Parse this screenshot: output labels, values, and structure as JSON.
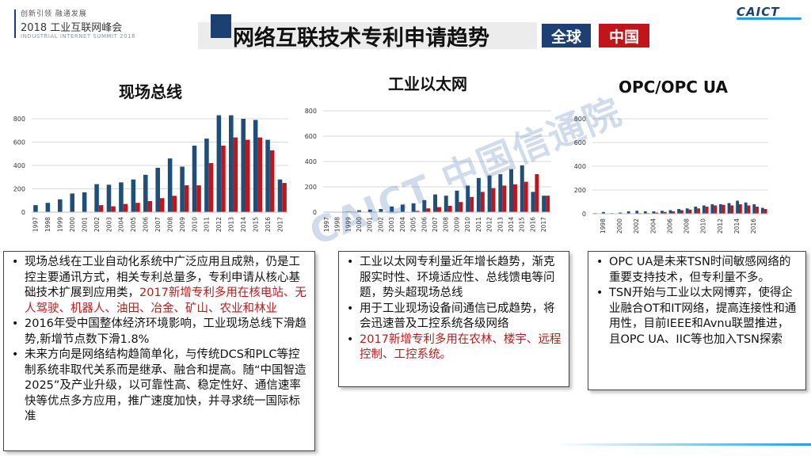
{
  "header": {
    "line1": "创新引领  融通发展",
    "line2": "2018 工业互联网峰会",
    "line3": "INDUSTRIAL INTERNET SUMMIT 2018",
    "title": "网络互联技术专利申请趋势",
    "tag_global": "全球",
    "tag_china": "中国",
    "logo": "CAICT",
    "colors": {
      "navy": "#1c3f74",
      "red": "#c0151b"
    }
  },
  "watermark": "CAICT 中国信通院",
  "chart_data": [
    {
      "type": "bar",
      "title": "现场总线",
      "categories": [
        "1997",
        "1998",
        "1999",
        "2000",
        "2001",
        "2002",
        "2003",
        "2004",
        "2005",
        "2006",
        "2007",
        "2008",
        "2009",
        "2010",
        "2011",
        "2012",
        "2013",
        "2014",
        "2015",
        "2016",
        "2017"
      ],
      "series": [
        {
          "color": "#1f4e79",
          "values": [
            60,
            80,
            110,
            160,
            170,
            240,
            235,
            255,
            280,
            320,
            380,
            460,
            390,
            570,
            630,
            830,
            830,
            800,
            790,
            620,
            280
          ]
        },
        {
          "color": "#c0151b",
          "values": [
            0,
            0,
            0,
            0,
            0,
            60,
            50,
            70,
            80,
            95,
            120,
            140,
            230,
            230,
            420,
            570,
            640,
            620,
            640,
            530,
            250
          ]
        }
      ],
      "y_ticks": [
        "0",
        "200",
        "400",
        "600",
        "800"
      ],
      "ylim": [
        0,
        800
      ]
    },
    {
      "type": "bar",
      "title": "工业以太网",
      "categories": [
        "1997",
        "1998",
        "1999",
        "2000",
        "2001",
        "2002",
        "2003",
        "2004",
        "2005",
        "2006",
        "2007",
        "2008",
        "2009",
        "2010",
        "2011",
        "2012",
        "2013",
        "2014",
        "2015",
        "2016",
        "2017"
      ],
      "series": [
        {
          "color": "#1f4e79",
          "values": [
            0,
            0,
            5,
            15,
            20,
            25,
            45,
            60,
            70,
            95,
            140,
            130,
            170,
            210,
            270,
            290,
            300,
            340,
            370,
            160,
            130
          ]
        },
        {
          "color": "#c0151b",
          "values": [
            0,
            0,
            0,
            0,
            0,
            0,
            0,
            0,
            10,
            30,
            40,
            50,
            80,
            120,
            160,
            190,
            210,
            220,
            240,
            300,
            130
          ]
        }
      ],
      "y_ticks": [
        "0",
        "200",
        "400",
        "600",
        "800"
      ],
      "ylim": [
        0,
        800
      ]
    },
    {
      "type": "bar",
      "title": "OPC/OPC UA",
      "categories": [
        "1997",
        "1998",
        "1999",
        "2000",
        "2001",
        "2002",
        "2003",
        "2004",
        "2005",
        "2006",
        "2007",
        "2008",
        "2009",
        "2010",
        "2011",
        "2012",
        "2013",
        "2014",
        "2015",
        "2016",
        "2017"
      ],
      "series": [
        {
          "color": "#1f4e79",
          "values": [
            5,
            15,
            5,
            10,
            20,
            25,
            20,
            20,
            25,
            30,
            40,
            45,
            60,
            70,
            80,
            80,
            90,
            110,
            95,
            80,
            50
          ]
        },
        {
          "color": "#c0151b",
          "values": [
            0,
            0,
            0,
            0,
            0,
            5,
            5,
            10,
            15,
            20,
            30,
            35,
            45,
            60,
            70,
            75,
            70,
            80,
            70,
            60,
            40
          ]
        }
      ],
      "x_labels": [
        "1998",
        "2000",
        "2002",
        "2004",
        "2006",
        "2008",
        "2010",
        "2012",
        "2014",
        "2016"
      ],
      "y_ticks": [
        "0",
        "200",
        "400",
        "600",
        "800"
      ],
      "ylim": [
        0,
        800
      ]
    }
  ],
  "boxes": {
    "left": [
      {
        "segments": [
          {
            "text": "现场总线在工业自动化系统中广泛应用且成熟，仍是工控主要通讯方式，相关专利总量多，专利申请从核心基础技术扩展到应用类，",
            "red": false
          },
          {
            "text": "2017新增专利多用在核电站、无人驾驶、机器人、油田、冶金、矿山、农业和林业",
            "red": true
          }
        ]
      },
      {
        "segments": [
          {
            "text": "2016年受中国整体经济环境影响，工业现场总线下滑趋势,新增节点数下滑1.8%",
            "red": false
          }
        ]
      },
      {
        "segments": [
          {
            "text": "未来方向是网络结构趋简单化，与传统DCS和PLC等控制系统非取代关系而是继承、融合和提高。随“中国智造2025”及产业升级，以可靠性高、稳定性好、通信速率快等优点多方应用，推广速度加快，并寻求统一国际标准",
            "red": false
          }
        ]
      }
    ],
    "middle": [
      {
        "segments": [
          {
            "text": "工业以太网专利量近年增长趋势，渐克服实时性、环境适应性、总线馈电等问题，势头超现场总线",
            "red": false
          }
        ]
      },
      {
        "segments": [
          {
            "text": "用于工业现场设备间通信已成趋势，将会迅速普及工控系统各级网络",
            "red": false
          }
        ]
      },
      {
        "segments": [
          {
            "text": "2017新增专利多用在农林、楼宇、远程控制、工控系统。",
            "red": true
          }
        ]
      }
    ],
    "right": [
      {
        "segments": [
          {
            "text": "OPC UA是未来TSN时间敏感网络的重要支持技术，但专利量不多。",
            "red": false
          }
        ]
      },
      {
        "segments": [
          {
            "text": "TSN开始与工业以太网博弈，使得企业融合OT和IT网络，提高连接性和通用性，目前IEEE和Avnu联盟推进，且OPC UA、IIC等也加入TSN探索",
            "red": false
          }
        ]
      }
    ]
  }
}
